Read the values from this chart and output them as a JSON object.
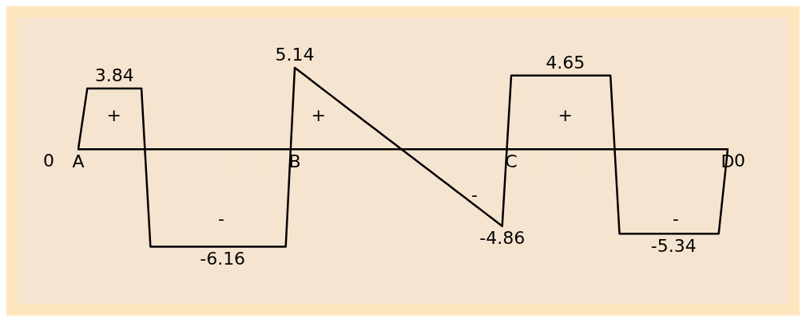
{
  "chart_data": {
    "type": "line",
    "categories": [
      "A",
      null,
      null,
      null,
      null,
      null,
      null,
      null,
      null,
      null,
      null,
      null,
      null,
      null,
      null,
      null,
      null,
      null,
      null,
      null,
      null,
      null,
      null,
      null,
      "B",
      null,
      null,
      null,
      null,
      null,
      null,
      null,
      null,
      null,
      null,
      null,
      null,
      null,
      null,
      null,
      null,
      null,
      null,
      null,
      null,
      null,
      null,
      null,
      "C",
      null,
      null,
      null,
      null,
      null,
      null,
      null,
      null,
      null,
      null,
      null,
      null,
      null,
      null,
      null,
      null,
      null,
      null,
      null,
      null,
      null,
      null,
      null,
      "D"
    ],
    "tick_labels": "x",
    "grid": false,
    "legend": false,
    "marker": "none",
    "line_style": "solid",
    "series": [
      {
        "color": "#000000",
        "values": [
          0,
          3.84,
          3.84,
          3.84,
          3.84,
          3.84,
          3.84,
          3.84,
          -6.16,
          -6.16,
          -6.16,
          -6.16,
          -6.16,
          -6.16,
          -6.16,
          -6.16,
          -6.16,
          -6.16,
          -6.16,
          -6.16,
          -6.16,
          -6.16,
          -6.16,
          -6.16,
          5.14,
          4.71,
          4.27,
          3.84,
          3.4,
          2.97,
          2.53,
          2.1,
          1.66,
          1.23,
          0.79,
          0.36,
          -0.08,
          -0.51,
          -0.95,
          -1.38,
          -1.82,
          -2.25,
          -2.69,
          -3.12,
          -3.56,
          -3.99,
          -4.43,
          -4.86,
          4.65,
          4.65,
          4.65,
          4.65,
          4.65,
          4.65,
          4.65,
          4.65,
          4.65,
          4.65,
          4.65,
          4.65,
          -5.34,
          -5.34,
          -5.34,
          -5.34,
          -5.34,
          -5.34,
          -5.34,
          -5.34,
          -5.34,
          -5.34,
          -5.34,
          -5.34,
          0
        ],
        "value_labels": [
          "0",
          null,
          null,
          null,
          "3.84",
          null,
          null,
          null,
          null,
          null,
          null,
          null,
          null,
          null,
          null,
          null,
          "-6.16",
          null,
          null,
          null,
          null,
          null,
          null,
          null,
          "5.14",
          null,
          null,
          null,
          null,
          null,
          null,
          null,
          null,
          null,
          null,
          null,
          null,
          null,
          null,
          null,
          null,
          null,
          null,
          null,
          null,
          null,
          null,
          "-4.86",
          null,
          null,
          null,
          null,
          null,
          null,
          "4.65",
          null,
          null,
          null,
          null,
          null,
          null,
          null,
          null,
          null,
          null,
          null,
          "-5.34",
          null,
          null,
          null,
          null,
          null,
          "0"
        ]
      }
    ],
    "annotations": [
      "+",
      "-",
      "+",
      "-",
      "+",
      "-"
    ]
  }
}
